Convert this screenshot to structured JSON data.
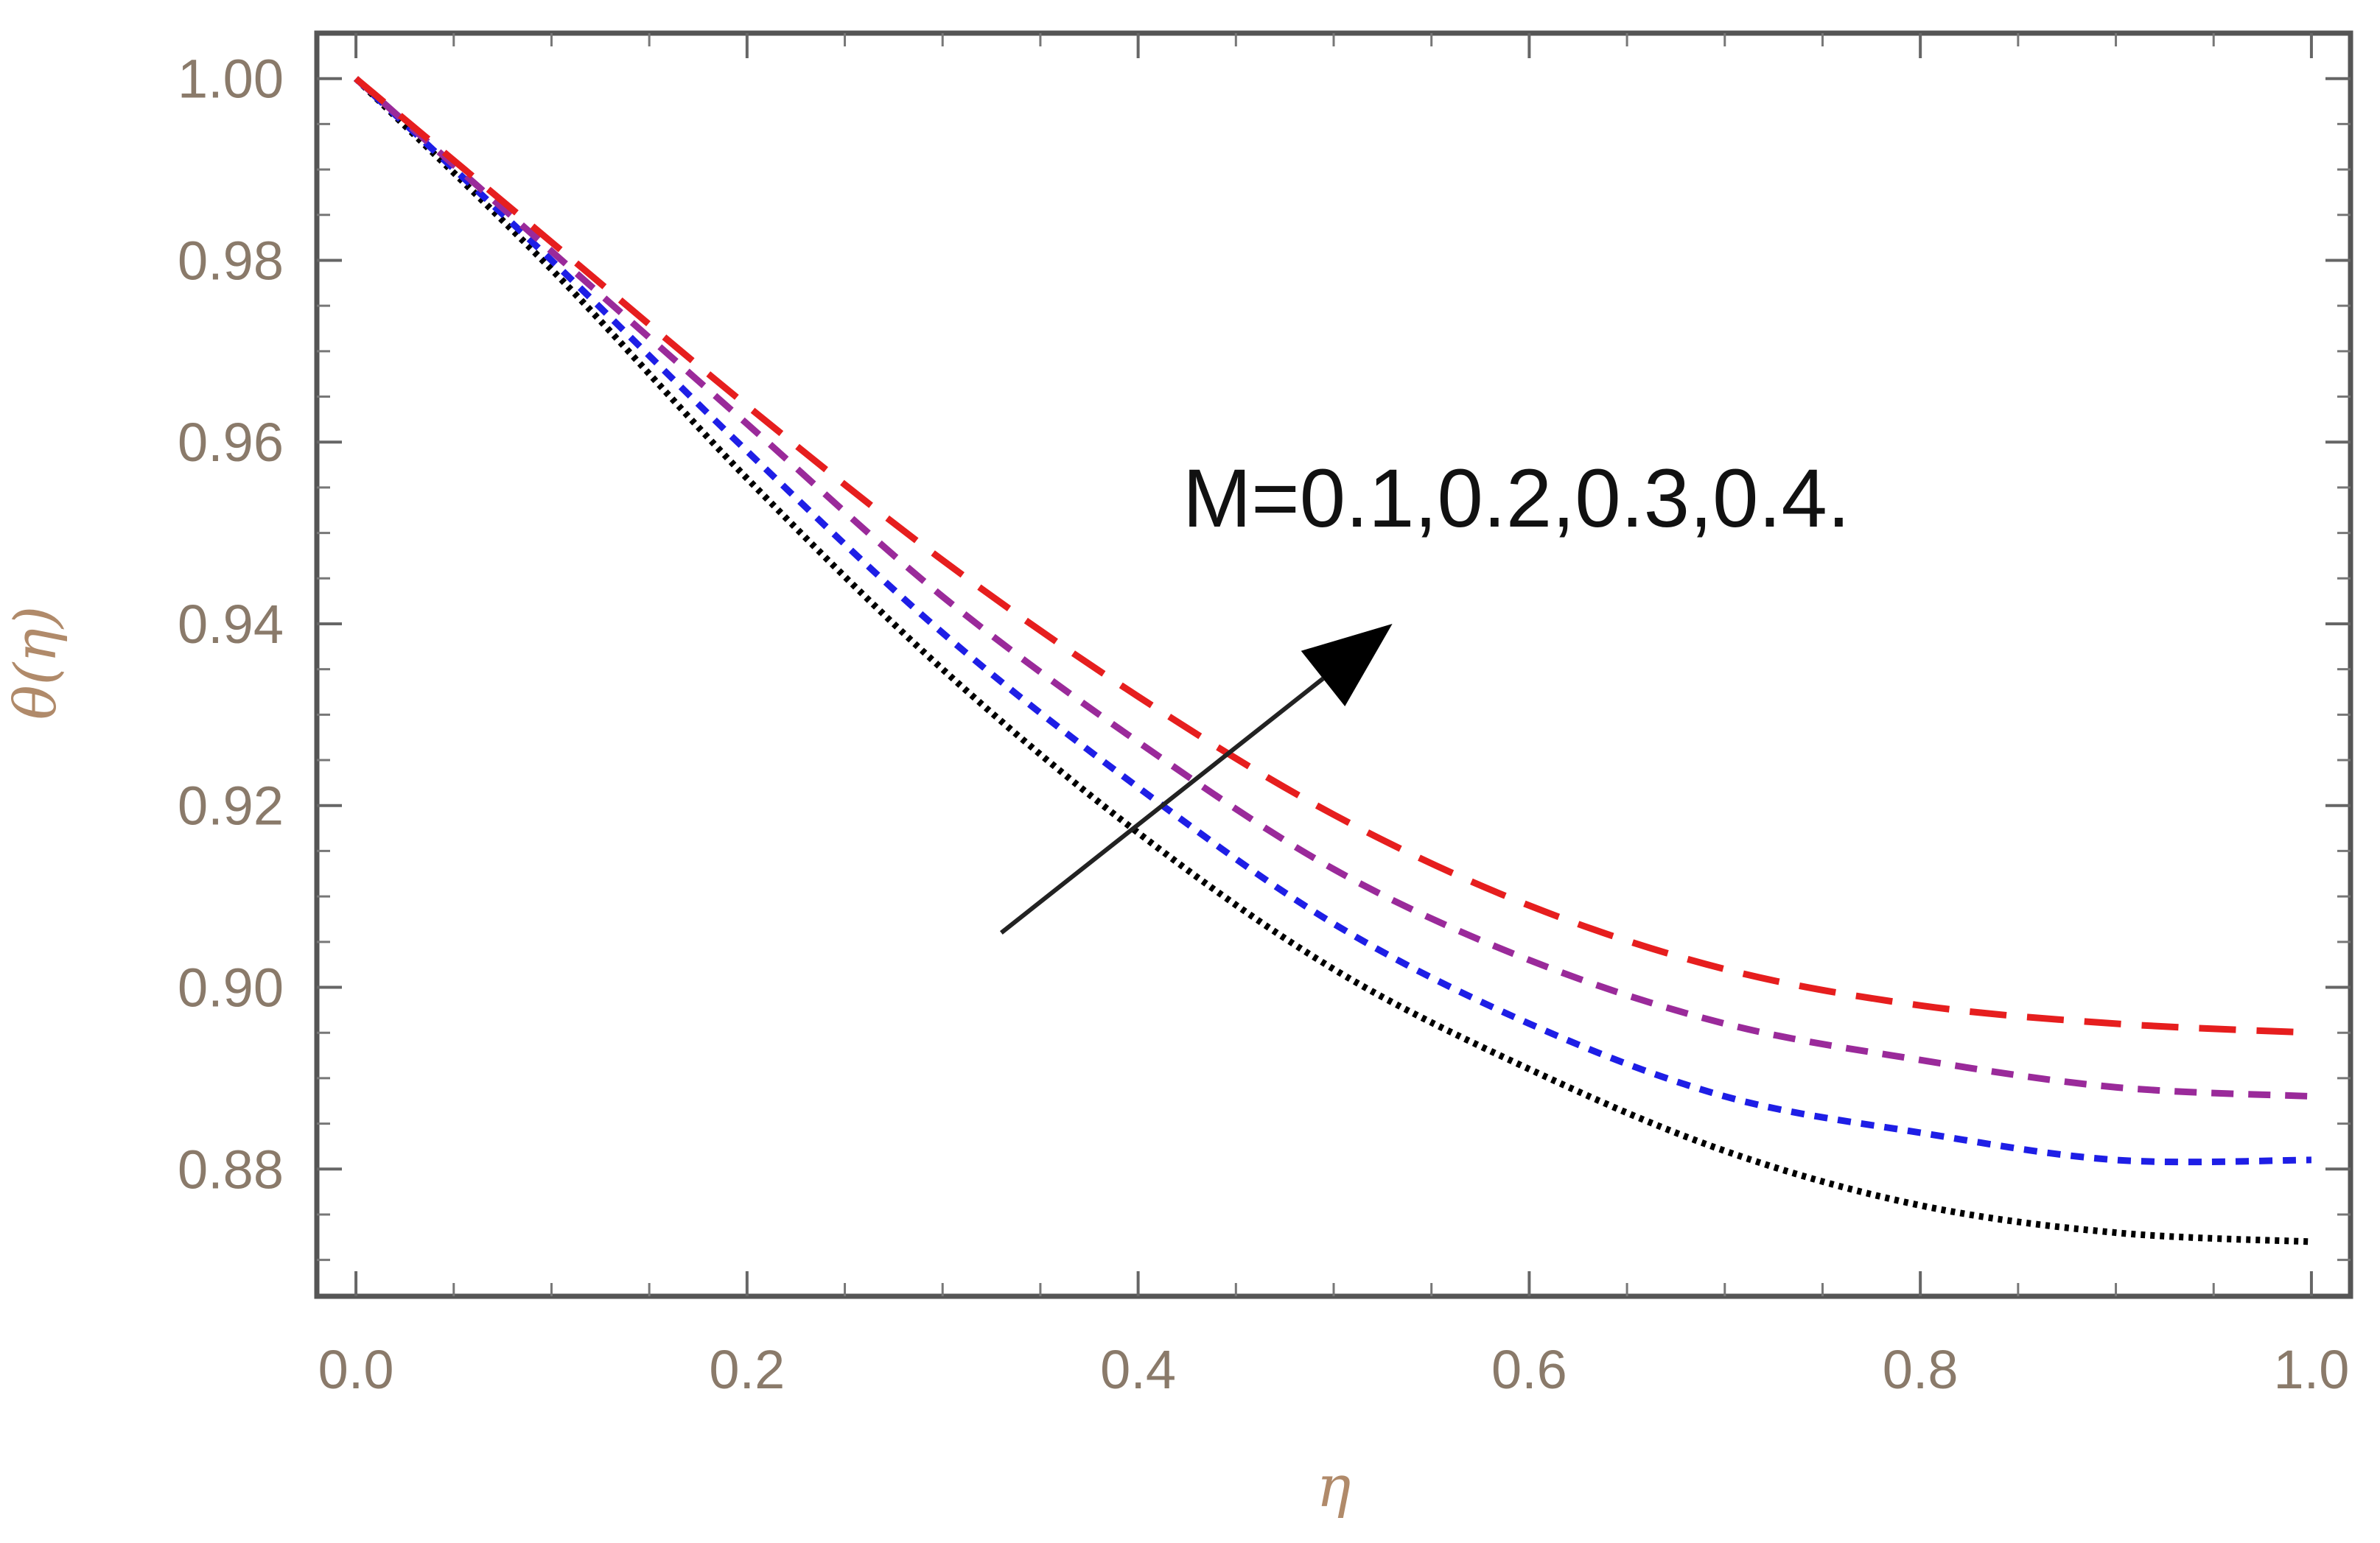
{
  "chart_data": {
    "type": "line",
    "title": "",
    "xlabel": "η",
    "ylabel": "θ(η)",
    "xlim": [
      -0.02,
      1.02
    ],
    "ylim": [
      0.866,
      1.005
    ],
    "x_ticks": [
      "0.0",
      "0.2",
      "0.4",
      "0.6",
      "0.8",
      "1.0"
    ],
    "y_ticks": [
      "1.00",
      "0.98",
      "0.96",
      "0.94",
      "0.92",
      "0.90",
      "0.88"
    ],
    "grid": false,
    "annotation": {
      "text": "M=0.1,0.2,0.3,0.4.",
      "arrow_from": [
        0.33,
        0.906
      ],
      "arrow_to": [
        0.53,
        0.94
      ]
    },
    "x": [
      0.0,
      0.1,
      0.2,
      0.3,
      0.4,
      0.5,
      0.6,
      0.7,
      0.8,
      0.9,
      1.0
    ],
    "series": [
      {
        "color": "#000000",
        "dash": "dotted",
        "values": [
          1.0,
          0.979,
          0.956,
          0.935,
          0.917,
          0.902,
          0.891,
          0.882,
          0.876,
          0.873,
          0.872
        ]
      },
      {
        "color": "#1e1ee6",
        "dash": "short",
        "values": [
          1.0,
          0.98,
          0.959,
          0.939,
          0.922,
          0.907,
          0.896,
          0.888,
          0.884,
          0.881,
          0.881
        ]
      },
      {
        "color": "#9a2a9a",
        "dash": "medium",
        "values": [
          1.0,
          0.981,
          0.962,
          0.943,
          0.927,
          0.913,
          0.903,
          0.896,
          0.892,
          0.889,
          0.888
        ]
      },
      {
        "color": "#e61e1e",
        "dash": "long",
        "values": [
          1.0,
          0.982,
          0.964,
          0.947,
          0.932,
          0.919,
          0.909,
          0.902,
          0.898,
          0.896,
          0.895
        ]
      }
    ]
  }
}
